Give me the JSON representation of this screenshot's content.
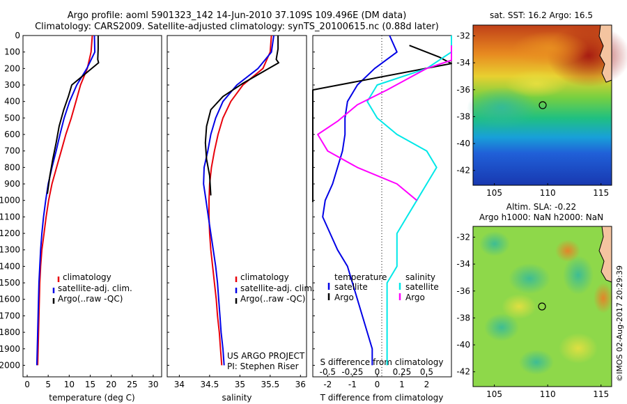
{
  "header": {
    "line1": "Argo profile: aoml 5901323_142 14-Jun-2010 37.109S 109.496E (DM data)",
    "line2": "Climatology: CARS2009. Satellite-adjusted climatology: synTS_20100615.nc (0.88d later)"
  },
  "colors": {
    "climatology": "#e8000b",
    "satellite": "#0000e6",
    "argo": "#000000",
    "satellite_s": "#00e8e8",
    "argo_s": "#ff00ff"
  },
  "chart_data": [
    {
      "type": "line",
      "xlabel": "temperature (deg C)",
      "ylabel": "",
      "xlim": [
        -1,
        32
      ],
      "ylim": [
        2070,
        0
      ],
      "x_ticks": [
        "0",
        "5",
        "10",
        "15",
        "20",
        "25",
        "30"
      ],
      "y_ticks": [
        "0",
        "100",
        "200",
        "300",
        "400",
        "500",
        "600",
        "700",
        "800",
        "900",
        "1000",
        "1100",
        "1200",
        "1300",
        "1400",
        "1500",
        "1600",
        "1700",
        "1800",
        "1900",
        "2000"
      ],
      "legend": [
        "climatology",
        "satellite-adj. clim.",
        "Argo(..raw -QC)"
      ],
      "legend_position": "lower-right",
      "series": [
        {
          "name": "climatology",
          "x": [
            15.5,
            15.2,
            14.3,
            12.7,
            11.6,
            10.5,
            9.2,
            8.1,
            7.0,
            5.9,
            5.1,
            4.5,
            4.0,
            3.5,
            3.2,
            3.0,
            2.9,
            2.8,
            2.7,
            2.6,
            2.5
          ],
          "y": [
            0,
            100,
            200,
            300,
            400,
            500,
            600,
            700,
            800,
            900,
            1000,
            1100,
            1200,
            1300,
            1400,
            1500,
            1600,
            1700,
            1800,
            1900,
            2000
          ]
        },
        {
          "name": "satellite-adj. clim.",
          "x": [
            16.0,
            16.1,
            14.2,
            11.8,
            10.1,
            8.8,
            7.8,
            6.9,
            5.9,
            5.0,
            4.4,
            3.9,
            3.5,
            3.2,
            3.0,
            2.8,
            2.7,
            2.6,
            2.5,
            2.4,
            2.3
          ],
          "y": [
            0,
            100,
            200,
            300,
            400,
            500,
            600,
            700,
            800,
            900,
            1000,
            1100,
            1200,
            1300,
            1400,
            1500,
            1600,
            1700,
            1800,
            1900,
            2000
          ]
        },
        {
          "name": "Argo(..raw -QC)",
          "x": [
            16.9,
            16.9,
            16.8,
            17.0,
            10.6,
            9.8,
            8.7,
            7.6,
            6.9,
            6.1,
            5.4,
            4.8
          ],
          "y": [
            0,
            80,
            145,
            165,
            300,
            370,
            450,
            550,
            650,
            750,
            850,
            960
          ]
        }
      ]
    },
    {
      "type": "line",
      "xlabel": "salinity",
      "ylabel": "",
      "xlim": [
        33.8,
        36.1
      ],
      "ylim": [
        2070,
        0
      ],
      "x_ticks": [
        "34",
        "34.5",
        "35",
        "35.5",
        "36"
      ],
      "legend": [
        "climatology",
        "satellite-adj. clim.",
        "Argo(..raw -QC)"
      ],
      "annotation": [
        "US ARGO PROJECT",
        "PI: Stephen Riser"
      ],
      "series": [
        {
          "name": "climatology",
          "x": [
            35.52,
            35.5,
            35.38,
            35.05,
            34.85,
            34.72,
            34.64,
            34.58,
            34.53,
            34.5,
            34.49,
            34.49,
            34.5,
            34.52,
            34.55,
            34.58,
            34.61,
            34.63,
            34.66,
            34.68,
            34.7
          ],
          "y": [
            0,
            100,
            200,
            300,
            400,
            500,
            600,
            700,
            800,
            900,
            1000,
            1100,
            1200,
            1300,
            1400,
            1500,
            1600,
            1700,
            1800,
            1900,
            2000
          ]
        },
        {
          "name": "satellite-adj. clim.",
          "x": [
            35.56,
            35.52,
            35.3,
            34.95,
            34.72,
            34.6,
            34.52,
            34.47,
            34.41,
            34.4,
            34.44,
            34.48,
            34.52,
            34.56,
            34.6,
            34.63,
            34.65,
            34.67,
            34.69,
            34.72,
            34.74
          ],
          "y": [
            0,
            100,
            200,
            300,
            400,
            500,
            600,
            700,
            800,
            900,
            1000,
            1100,
            1200,
            1300,
            1400,
            1500,
            1600,
            1700,
            1800,
            1900,
            2000
          ]
        },
        {
          "name": "Argo(..raw -QC)",
          "x": [
            35.63,
            35.63,
            35.6,
            35.64,
            35.05,
            34.72,
            34.52,
            34.45,
            34.43,
            34.45,
            34.5,
            34.52
          ],
          "y": [
            0,
            80,
            145,
            165,
            290,
            370,
            450,
            550,
            650,
            750,
            850,
            970
          ]
        }
      ]
    },
    {
      "type": "line",
      "xlabel": "T difference from climatology",
      "title_bottom": "S difference from climatology",
      "xlim": [
        -2.6,
        3.0
      ],
      "ylim": [
        2070,
        0
      ],
      "x_ticks": [
        "-2",
        "-1",
        "0",
        "1",
        "2"
      ],
      "x_ticks_top": [
        "-0.5",
        "-0.25",
        "0",
        "0.25",
        "0.5"
      ],
      "legend_temperature": [
        "temperature",
        "satellite",
        "Argo"
      ],
      "legend_salinity": [
        "salinity",
        "satellite",
        "Argo"
      ],
      "series": [
        {
          "name": "satellite",
          "x": [
            0.5,
            0.8,
            -0.1,
            -0.8,
            -1.2,
            -1.3,
            -1.3,
            -1.4,
            -1.6,
            -1.8,
            -2.1,
            -2.2,
            -1.9,
            -1.6,
            -1.2,
            -1.0,
            -0.8,
            -0.6,
            -0.4,
            -0.2,
            -0.2
          ],
          "y": [
            0,
            100,
            200,
            300,
            400,
            500,
            600,
            700,
            800,
            900,
            1000,
            1100,
            1200,
            1300,
            1400,
            1500,
            1600,
            1700,
            1800,
            1900,
            2000
          ]
        },
        {
          "name": "Argo",
          "x": [
            1.3,
            2.5,
            3.0,
            -2.6,
            -3.0,
            -2.7
          ],
          "y": [
            60,
            130,
            170,
            330,
            560,
            1010
          ]
        },
        {
          "name": "satellite_s",
          "x": [
            1.0,
            1.0,
            0.5,
            0.0,
            -0.1,
            0.0,
            0.2,
            0.5,
            0.6,
            0.5,
            0.4,
            0.3,
            0.2,
            0.2,
            0.2,
            0.1,
            0.1,
            0.1,
            0.1,
            0.1,
            0.1
          ],
          "y": [
            0,
            100,
            200,
            300,
            400,
            500,
            600,
            700,
            800,
            900,
            1000,
            1100,
            1200,
            1300,
            1400,
            1500,
            1600,
            1700,
            1800,
            1900,
            2000
          ]
        },
        {
          "name": "Argo_s",
          "x": [
            1.1,
            1.4,
            0.5,
            0.1,
            -0.2,
            -0.4,
            -0.6,
            -0.5,
            -0.2,
            0.2,
            0.4
          ],
          "y": [
            60,
            150,
            200,
            330,
            420,
            520,
            600,
            700,
            800,
            900,
            1000
          ]
        }
      ]
    }
  ],
  "sst_map": {
    "title": "sat. SST: 16.2 Argo: 16.5",
    "x_ticks": [
      "105",
      "110",
      "115"
    ],
    "y_ticks": [
      "-32",
      "-34",
      "-36",
      "-38",
      "-40",
      "-42"
    ]
  },
  "sla_map": {
    "title1": "Altim. SLA: -0.22",
    "title2": "Argo h1000: NaN h2000: NaN",
    "x_ticks": [
      "105",
      "110",
      "115"
    ],
    "y_ticks": [
      "-32",
      "-34",
      "-36",
      "-38",
      "-40",
      "-42"
    ]
  },
  "footer_stamp": "©IMOS 02-Aug-2017 20:29:39"
}
